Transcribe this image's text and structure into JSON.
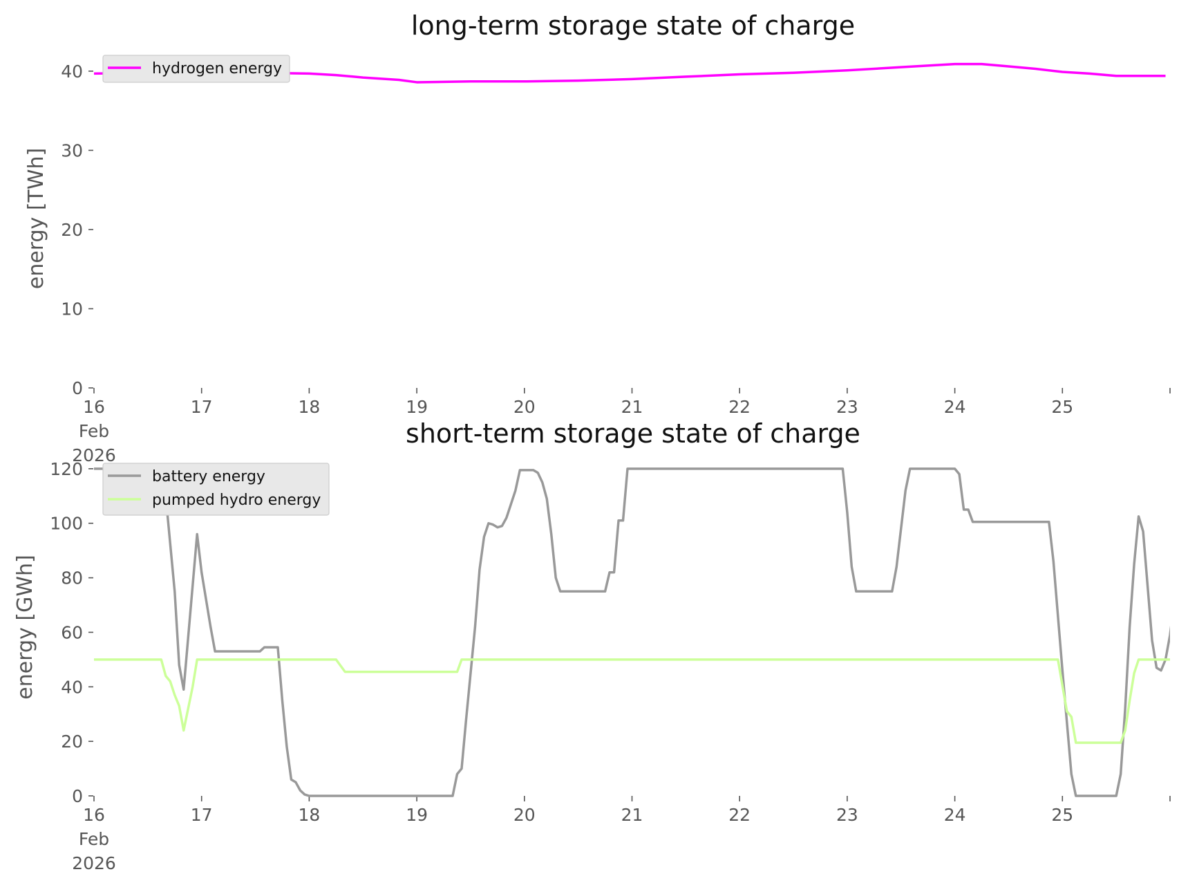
{
  "chart_data": [
    {
      "type": "line",
      "title": "long-term storage state of charge",
      "ylabel": "energy [TWh]",
      "xlabel": "",
      "xlim": [
        "2026-02-16 00:00",
        "2026-02-25 23:00"
      ],
      "ylim": [
        0,
        42
      ],
      "x_ticks": [
        {
          "date": "2026-02-16",
          "label": [
            "16",
            "Feb",
            "2026"
          ]
        },
        {
          "date": "2026-02-17",
          "label": [
            "17"
          ]
        },
        {
          "date": "2026-02-18",
          "label": [
            "18"
          ]
        },
        {
          "date": "2026-02-19",
          "label": [
            "19"
          ]
        },
        {
          "date": "2026-02-20",
          "label": [
            "20"
          ]
        },
        {
          "date": "2026-02-21",
          "label": [
            "21"
          ]
        },
        {
          "date": "2026-02-22",
          "label": [
            "22"
          ]
        },
        {
          "date": "2026-02-23",
          "label": [
            "23"
          ]
        },
        {
          "date": "2026-02-24",
          "label": [
            "24"
          ]
        },
        {
          "date": "2026-02-25",
          "label": [
            "25"
          ]
        }
      ],
      "y_ticks": [
        0,
        10,
        20,
        30,
        40
      ],
      "grid": false,
      "legend": "top-left",
      "series": [
        {
          "name": "hydrogen energy",
          "color": "#ff00ff",
          "points": [
            [
              "2026-02-16 00:00",
              39.7
            ],
            [
              "2026-02-16 12:00",
              39.8
            ],
            [
              "2026-02-17 00:00",
              39.8
            ],
            [
              "2026-02-17 12:00",
              39.8
            ],
            [
              "2026-02-18 00:00",
              39.7
            ],
            [
              "2026-02-18 06:00",
              39.5
            ],
            [
              "2026-02-18 12:00",
              39.2
            ],
            [
              "2026-02-18 20:00",
              38.9
            ],
            [
              "2026-02-19 00:00",
              38.6
            ],
            [
              "2026-02-19 12:00",
              38.7
            ],
            [
              "2026-02-20 00:00",
              38.7
            ],
            [
              "2026-02-20 12:00",
              38.8
            ],
            [
              "2026-02-21 00:00",
              39.0
            ],
            [
              "2026-02-21 12:00",
              39.3
            ],
            [
              "2026-02-22 00:00",
              39.6
            ],
            [
              "2026-02-22 12:00",
              39.8
            ],
            [
              "2026-02-23 00:00",
              40.1
            ],
            [
              "2026-02-23 12:00",
              40.5
            ],
            [
              "2026-02-24 00:00",
              40.9
            ],
            [
              "2026-02-24 06:00",
              40.9
            ],
            [
              "2026-02-24 12:00",
              40.6
            ],
            [
              "2026-02-24 18:00",
              40.3
            ],
            [
              "2026-02-25 00:00",
              39.9
            ],
            [
              "2026-02-25 06:00",
              39.7
            ],
            [
              "2026-02-25 12:00",
              39.4
            ],
            [
              "2026-02-25 23:00",
              39.4
            ]
          ]
        }
      ]
    },
    {
      "type": "line",
      "title": "short-term storage state of charge",
      "ylabel": "energy [GWh]",
      "xlabel": "",
      "xlim": [
        "2026-02-16 00:00",
        "2026-02-25 23:00"
      ],
      "ylim": [
        0,
        122
      ],
      "x_ticks": [
        {
          "date": "2026-02-16",
          "label": [
            "16",
            "Feb",
            "2026"
          ]
        },
        {
          "date": "2026-02-17",
          "label": [
            "17"
          ]
        },
        {
          "date": "2026-02-18",
          "label": [
            "18"
          ]
        },
        {
          "date": "2026-02-19",
          "label": [
            "19"
          ]
        },
        {
          "date": "2026-02-20",
          "label": [
            "20"
          ]
        },
        {
          "date": "2026-02-21",
          "label": [
            "21"
          ]
        },
        {
          "date": "2026-02-22",
          "label": [
            "22"
          ]
        },
        {
          "date": "2026-02-23",
          "label": [
            "23"
          ]
        },
        {
          "date": "2026-02-24",
          "label": [
            "24"
          ]
        },
        {
          "date": "2026-02-25",
          "label": [
            "25"
          ]
        }
      ],
      "y_ticks": [
        0,
        20,
        40,
        60,
        80,
        100,
        120
      ],
      "grid": false,
      "legend": "top-left",
      "series": [
        {
          "name": "battery energy",
          "color": "#999999",
          "points": [
            [
              "2026-02-16 00:00",
              120
            ],
            [
              "2026-02-16 15:00",
              120
            ],
            [
              "2026-02-16 16:00",
              110
            ],
            [
              "2026-02-16 18:00",
              75
            ],
            [
              "2026-02-16 19:00",
              48
            ],
            [
              "2026-02-16 20:00",
              39
            ],
            [
              "2026-02-16 23:00",
              96
            ],
            [
              "2026-02-17 00:00",
              82
            ],
            [
              "2026-02-17 02:00",
              62
            ],
            [
              "2026-02-17 03:00",
              53
            ],
            [
              "2026-02-17 13:00",
              53
            ],
            [
              "2026-02-17 14:00",
              54.5
            ],
            [
              "2026-02-17 17:00",
              54.5
            ],
            [
              "2026-02-17 18:00",
              35
            ],
            [
              "2026-02-17 19:00",
              18
            ],
            [
              "2026-02-17 20:00",
              6
            ],
            [
              "2026-02-17 21:00",
              5
            ],
            [
              "2026-02-17 22:00",
              2
            ],
            [
              "2026-02-17 23:00",
              0.5
            ],
            [
              "2026-02-18 00:00",
              0
            ],
            [
              "2026-02-19 08:00",
              0
            ],
            [
              "2026-02-19 09:00",
              8
            ],
            [
              "2026-02-19 10:00",
              10
            ],
            [
              "2026-02-19 11:00",
              28
            ],
            [
              "2026-02-19 13:00",
              62
            ],
            [
              "2026-02-19 14:00",
              83
            ],
            [
              "2026-02-19 15:00",
              95
            ],
            [
              "2026-02-19 16:00",
              100
            ],
            [
              "2026-02-19 17:00",
              99.5
            ],
            [
              "2026-02-19 18:00",
              98.5
            ],
            [
              "2026-02-19 19:00",
              99
            ],
            [
              "2026-02-19 20:00",
              102
            ],
            [
              "2026-02-19 22:00",
              112
            ],
            [
              "2026-02-19 23:00",
              119.5
            ],
            [
              "2026-02-20 02:00",
              119.5
            ],
            [
              "2026-02-20 03:00",
              118.5
            ],
            [
              "2026-02-20 04:00",
              115
            ],
            [
              "2026-02-20 05:00",
              109
            ],
            [
              "2026-02-20 06:00",
              96
            ],
            [
              "2026-02-20 07:00",
              80
            ],
            [
              "2026-02-20 08:00",
              75
            ],
            [
              "2026-02-20 18:00",
              75
            ],
            [
              "2026-02-20 19:00",
              82
            ],
            [
              "2026-02-20 20:00",
              82
            ],
            [
              "2026-02-20 21:00",
              101
            ],
            [
              "2026-02-20 22:00",
              101
            ],
            [
              "2026-02-20 23:00",
              120
            ],
            [
              "2026-02-22 23:00",
              120
            ],
            [
              "2026-02-23 00:00",
              104
            ],
            [
              "2026-02-23 01:00",
              84
            ],
            [
              "2026-02-23 02:00",
              75
            ],
            [
              "2026-02-23 10:00",
              75
            ],
            [
              "2026-02-23 11:00",
              84
            ],
            [
              "2026-02-23 13:00",
              112
            ],
            [
              "2026-02-23 14:00",
              120
            ],
            [
              "2026-02-24 00:00",
              120
            ],
            [
              "2026-02-24 01:00",
              118
            ],
            [
              "2026-02-24 02:00",
              105
            ],
            [
              "2026-02-24 03:00",
              105
            ],
            [
              "2026-02-24 04:00",
              100.5
            ],
            [
              "2026-02-24 21:00",
              100.5
            ],
            [
              "2026-02-24 22:00",
              86
            ],
            [
              "2026-02-25 00:00",
              46
            ],
            [
              "2026-02-25 02:00",
              8
            ],
            [
              "2026-02-25 03:00",
              0
            ],
            [
              "2026-02-25 12:00",
              0
            ],
            [
              "2026-02-25 13:00",
              8
            ],
            [
              "2026-02-25 14:00",
              32
            ],
            [
              "2026-02-25 15:00",
              62
            ],
            [
              "2026-02-25 16:00",
              85
            ],
            [
              "2026-02-25 17:00",
              102.5
            ],
            [
              "2026-02-25 18:00",
              97
            ],
            [
              "2026-02-25 20:00",
              57
            ],
            [
              "2026-02-25 21:00",
              47
            ],
            [
              "2026-02-25 22:00",
              46
            ],
            [
              "2026-02-25 23:00",
              50
            ],
            [
              "2026-02-26 00:00",
              59
            ],
            [
              "2026-02-26 01:00",
              72
            ]
          ]
        },
        {
          "name": "pumped hydro energy",
          "color": "#ccff99",
          "points": [
            [
              "2026-02-16 00:00",
              50
            ],
            [
              "2026-02-16 15:00",
              50
            ],
            [
              "2026-02-16 16:00",
              44
            ],
            [
              "2026-02-16 17:00",
              42
            ],
            [
              "2026-02-16 18:00",
              37
            ],
            [
              "2026-02-16 19:00",
              33
            ],
            [
              "2026-02-16 20:00",
              24
            ],
            [
              "2026-02-16 22:00",
              40
            ],
            [
              "2026-02-16 23:00",
              50
            ],
            [
              "2026-02-18 06:00",
              50
            ],
            [
              "2026-02-18 08:00",
              45.5
            ],
            [
              "2026-02-19 09:00",
              45.5
            ],
            [
              "2026-02-19 10:00",
              50
            ],
            [
              "2026-02-24 22:00",
              50
            ],
            [
              "2026-02-24 23:00",
              50
            ],
            [
              "2026-02-25 01:00",
              31
            ],
            [
              "2026-02-25 02:00",
              29
            ],
            [
              "2026-02-25 03:00",
              19.5
            ],
            [
              "2026-02-25 13:00",
              19.5
            ],
            [
              "2026-02-25 14:00",
              24
            ],
            [
              "2026-02-25 15:00",
              35
            ],
            [
              "2026-02-25 16:00",
              45
            ],
            [
              "2026-02-25 17:00",
              50
            ],
            [
              "2026-02-26 01:00",
              50
            ]
          ]
        }
      ]
    }
  ]
}
